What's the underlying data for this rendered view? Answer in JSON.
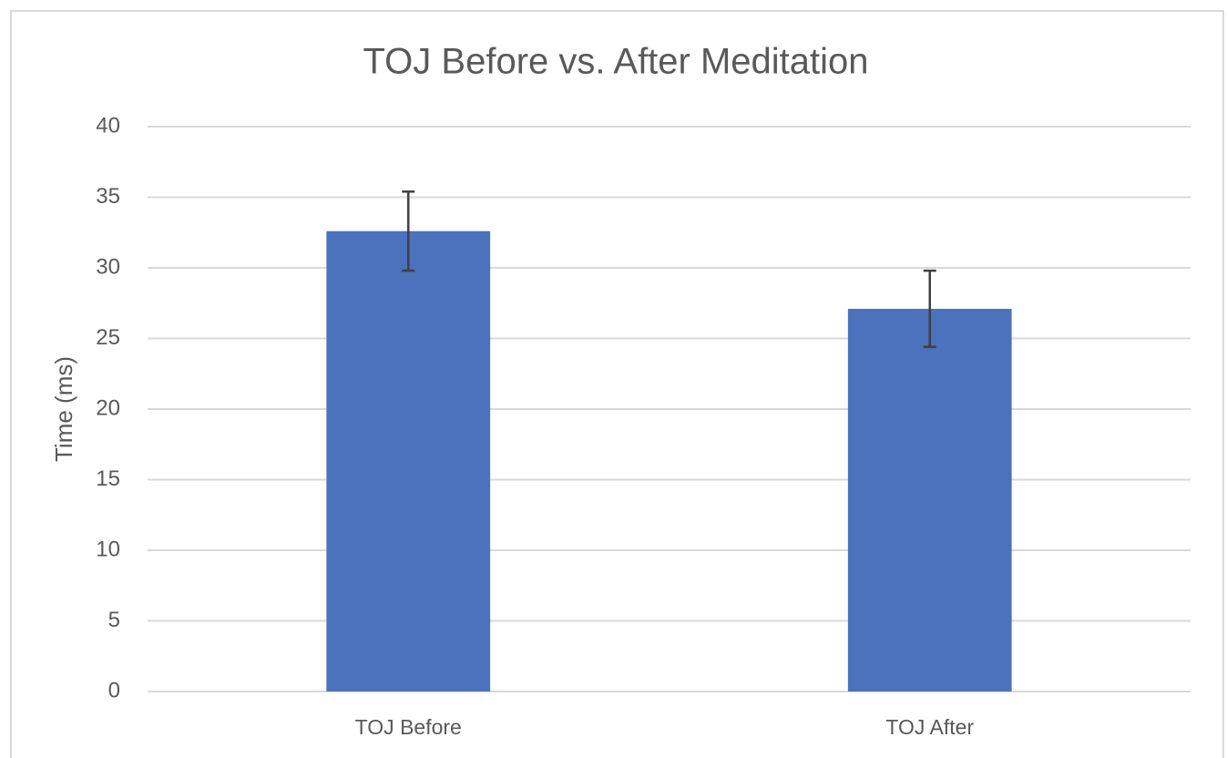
{
  "chart_data": {
    "type": "bar",
    "title": "TOJ Before vs. After Meditation",
    "y_label": "Time (ms)",
    "categories": [
      "TOJ Before",
      "TOJ After"
    ],
    "values": [
      32.6,
      27.1
    ],
    "errors": [
      2.8,
      2.7
    ],
    "color": "#4a72bd",
    "error_color": "#404040",
    "ylim": [
      0,
      40
    ],
    "yticks": [
      0,
      5,
      10,
      15,
      20,
      25,
      30,
      35,
      40
    ],
    "grid": true
  }
}
